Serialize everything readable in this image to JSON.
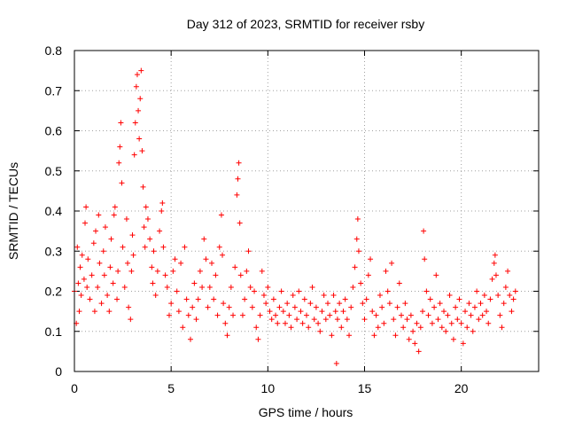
{
  "chart_data": {
    "type": "scatter",
    "title": "Day 312 of 2023, SRMTID for receiver rsby",
    "xlabel": "GPS time / hours",
    "ylabel": "SRMTID / TECUs",
    "xlim": [
      0,
      24
    ],
    "ylim": [
      0,
      0.8
    ],
    "x_ticks": [
      0,
      5,
      10,
      15,
      20
    ],
    "x_tick_labels": [
      "0",
      "5",
      "10",
      "15",
      "20"
    ],
    "y_ticks": [
      0,
      0.1,
      0.2,
      0.3,
      0.4,
      0.5,
      0.6,
      0.7,
      0.8
    ],
    "y_tick_labels": [
      "0",
      "0.1",
      "0.2",
      "0.3",
      "0.4",
      "0.5",
      "0.6",
      "0.7",
      "0.8"
    ],
    "grid": true,
    "marker": "plus",
    "series_color": "#ff0000",
    "series": [
      {
        "name": "SRMTID",
        "points": [
          [
            0.0,
            0.2
          ],
          [
            0.1,
            0.12
          ],
          [
            0.15,
            0.31
          ],
          [
            0.2,
            0.22
          ],
          [
            0.25,
            0.15
          ],
          [
            0.3,
            0.26
          ],
          [
            0.35,
            0.19
          ],
          [
            0.4,
            0.29
          ],
          [
            0.5,
            0.23
          ],
          [
            0.55,
            0.37
          ],
          [
            0.6,
            0.41
          ],
          [
            0.65,
            0.21
          ],
          [
            0.7,
            0.28
          ],
          [
            0.8,
            0.18
          ],
          [
            0.9,
            0.24
          ],
          [
            1.0,
            0.32
          ],
          [
            1.05,
            0.15
          ],
          [
            1.1,
            0.35
          ],
          [
            1.2,
            0.21
          ],
          [
            1.25,
            0.39
          ],
          [
            1.3,
            0.27
          ],
          [
            1.4,
            0.17
          ],
          [
            1.5,
            0.3
          ],
          [
            1.55,
            0.24
          ],
          [
            1.6,
            0.36
          ],
          [
            1.7,
            0.19
          ],
          [
            1.8,
            0.15
          ],
          [
            1.85,
            0.26
          ],
          [
            1.9,
            0.33
          ],
          [
            2.0,
            0.22
          ],
          [
            2.05,
            0.39
          ],
          [
            2.1,
            0.41
          ],
          [
            2.2,
            0.18
          ],
          [
            2.25,
            0.25
          ],
          [
            2.3,
            0.52
          ],
          [
            2.35,
            0.56
          ],
          [
            2.4,
            0.62
          ],
          [
            2.45,
            0.47
          ],
          [
            2.5,
            0.31
          ],
          [
            2.6,
            0.21
          ],
          [
            2.7,
            0.38
          ],
          [
            2.75,
            0.27
          ],
          [
            2.8,
            0.16
          ],
          [
            2.9,
            0.13
          ],
          [
            2.95,
            0.25
          ],
          [
            3.0,
            0.34
          ],
          [
            3.05,
            0.29
          ],
          [
            3.1,
            0.54
          ],
          [
            3.15,
            0.62
          ],
          [
            3.2,
            0.71
          ],
          [
            3.25,
            0.74
          ],
          [
            3.3,
            0.65
          ],
          [
            3.35,
            0.58
          ],
          [
            3.4,
            0.68
          ],
          [
            3.45,
            0.75
          ],
          [
            3.5,
            0.55
          ],
          [
            3.55,
            0.46
          ],
          [
            3.6,
            0.36
          ],
          [
            3.65,
            0.31
          ],
          [
            3.7,
            0.41
          ],
          [
            3.8,
            0.38
          ],
          [
            3.9,
            0.33
          ],
          [
            4.0,
            0.26
          ],
          [
            4.05,
            0.22
          ],
          [
            4.1,
            0.3
          ],
          [
            4.2,
            0.19
          ],
          [
            4.3,
            0.25
          ],
          [
            4.4,
            0.35
          ],
          [
            4.5,
            0.4
          ],
          [
            4.55,
            0.42
          ],
          [
            4.6,
            0.31
          ],
          [
            4.7,
            0.24
          ],
          [
            4.8,
            0.21
          ],
          [
            4.9,
            0.14
          ],
          [
            5.0,
            0.17
          ],
          [
            5.1,
            0.25
          ],
          [
            5.2,
            0.28
          ],
          [
            5.3,
            0.2
          ],
          [
            5.4,
            0.15
          ],
          [
            5.5,
            0.27
          ],
          [
            5.6,
            0.11
          ],
          [
            5.7,
            0.31
          ],
          [
            5.8,
            0.18
          ],
          [
            5.9,
            0.14
          ],
          [
            6.0,
            0.08
          ],
          [
            6.1,
            0.16
          ],
          [
            6.2,
            0.22
          ],
          [
            6.3,
            0.13
          ],
          [
            6.4,
            0.18
          ],
          [
            6.5,
            0.25
          ],
          [
            6.6,
            0.21
          ],
          [
            6.7,
            0.33
          ],
          [
            6.8,
            0.28
          ],
          [
            6.9,
            0.16
          ],
          [
            7.0,
            0.21
          ],
          [
            7.1,
            0.27
          ],
          [
            7.2,
            0.18
          ],
          [
            7.3,
            0.24
          ],
          [
            7.4,
            0.14
          ],
          [
            7.5,
            0.31
          ],
          [
            7.6,
            0.39
          ],
          [
            7.65,
            0.29
          ],
          [
            7.7,
            0.17
          ],
          [
            7.8,
            0.12
          ],
          [
            7.9,
            0.09
          ],
          [
            8.0,
            0.16
          ],
          [
            8.1,
            0.21
          ],
          [
            8.2,
            0.14
          ],
          [
            8.3,
            0.26
          ],
          [
            8.4,
            0.44
          ],
          [
            8.45,
            0.48
          ],
          [
            8.5,
            0.52
          ],
          [
            8.55,
            0.37
          ],
          [
            8.6,
            0.24
          ],
          [
            8.7,
            0.14
          ],
          [
            8.8,
            0.18
          ],
          [
            8.9,
            0.25
          ],
          [
            9.0,
            0.3
          ],
          [
            9.1,
            0.21
          ],
          [
            9.2,
            0.16
          ],
          [
            9.3,
            0.2
          ],
          [
            9.4,
            0.11
          ],
          [
            9.5,
            0.08
          ],
          [
            9.6,
            0.14
          ],
          [
            9.7,
            0.25
          ],
          [
            9.8,
            0.19
          ],
          [
            9.9,
            0.17
          ],
          [
            10.0,
            0.21
          ],
          [
            10.1,
            0.15
          ],
          [
            10.2,
            0.13
          ],
          [
            10.3,
            0.18
          ],
          [
            10.4,
            0.14
          ],
          [
            10.5,
            0.12
          ],
          [
            10.6,
            0.16
          ],
          [
            10.7,
            0.2
          ],
          [
            10.8,
            0.15
          ],
          [
            10.9,
            0.12
          ],
          [
            11.0,
            0.17
          ],
          [
            11.1,
            0.14
          ],
          [
            11.2,
            0.11
          ],
          [
            11.3,
            0.19
          ],
          [
            11.4,
            0.16
          ],
          [
            11.5,
            0.13
          ],
          [
            11.6,
            0.2
          ],
          [
            11.7,
            0.15
          ],
          [
            11.8,
            0.12
          ],
          [
            11.9,
            0.18
          ],
          [
            12.0,
            0.14
          ],
          [
            12.1,
            0.11
          ],
          [
            12.2,
            0.17
          ],
          [
            12.3,
            0.21
          ],
          [
            12.4,
            0.13
          ],
          [
            12.5,
            0.16
          ],
          [
            12.6,
            0.12
          ],
          [
            12.7,
            0.1
          ],
          [
            12.8,
            0.15
          ],
          [
            12.9,
            0.19
          ],
          [
            13.0,
            0.13
          ],
          [
            13.1,
            0.17
          ],
          [
            13.2,
            0.14
          ],
          [
            13.3,
            0.09
          ],
          [
            13.4,
            0.19
          ],
          [
            13.5,
            0.15
          ],
          [
            13.55,
            0.02
          ],
          [
            13.6,
            0.13
          ],
          [
            13.7,
            0.17
          ],
          [
            13.8,
            0.11
          ],
          [
            13.9,
            0.15
          ],
          [
            14.0,
            0.18
          ],
          [
            14.1,
            0.13
          ],
          [
            14.2,
            0.09
          ],
          [
            14.3,
            0.16
          ],
          [
            14.4,
            0.21
          ],
          [
            14.5,
            0.26
          ],
          [
            14.6,
            0.33
          ],
          [
            14.65,
            0.38
          ],
          [
            14.7,
            0.3
          ],
          [
            14.8,
            0.22
          ],
          [
            14.9,
            0.17
          ],
          [
            15.0,
            0.13
          ],
          [
            15.1,
            0.18
          ],
          [
            15.2,
            0.24
          ],
          [
            15.3,
            0.28
          ],
          [
            15.4,
            0.15
          ],
          [
            15.5,
            0.09
          ],
          [
            15.6,
            0.14
          ],
          [
            15.7,
            0.11
          ],
          [
            15.8,
            0.19
          ],
          [
            15.9,
            0.16
          ],
          [
            16.0,
            0.12
          ],
          [
            16.1,
            0.25
          ],
          [
            16.2,
            0.2
          ],
          [
            16.3,
            0.17
          ],
          [
            16.4,
            0.27
          ],
          [
            16.5,
            0.13
          ],
          [
            16.6,
            0.09
          ],
          [
            16.7,
            0.16
          ],
          [
            16.8,
            0.22
          ],
          [
            16.9,
            0.14
          ],
          [
            17.0,
            0.11
          ],
          [
            17.1,
            0.17
          ],
          [
            17.2,
            0.13
          ],
          [
            17.3,
            0.08
          ],
          [
            17.4,
            0.14
          ],
          [
            17.5,
            0.1
          ],
          [
            17.6,
            0.07
          ],
          [
            17.7,
            0.12
          ],
          [
            17.8,
            0.05
          ],
          [
            17.9,
            0.11
          ],
          [
            18.0,
            0.15
          ],
          [
            18.05,
            0.35
          ],
          [
            18.1,
            0.28
          ],
          [
            18.2,
            0.2
          ],
          [
            18.3,
            0.14
          ],
          [
            18.4,
            0.18
          ],
          [
            18.5,
            0.12
          ],
          [
            18.6,
            0.16
          ],
          [
            18.7,
            0.24
          ],
          [
            18.8,
            0.13
          ],
          [
            18.9,
            0.17
          ],
          [
            19.0,
            0.11
          ],
          [
            19.1,
            0.15
          ],
          [
            19.2,
            0.1
          ],
          [
            19.3,
            0.14
          ],
          [
            19.4,
            0.19
          ],
          [
            19.5,
            0.12
          ],
          [
            19.6,
            0.08
          ],
          [
            19.7,
            0.16
          ],
          [
            19.8,
            0.13
          ],
          [
            19.9,
            0.18
          ],
          [
            20.0,
            0.12
          ],
          [
            20.1,
            0.07
          ],
          [
            20.2,
            0.15
          ],
          [
            20.3,
            0.11
          ],
          [
            20.4,
            0.17
          ],
          [
            20.5,
            0.14
          ],
          [
            20.6,
            0.1
          ],
          [
            20.7,
            0.16
          ],
          [
            20.8,
            0.2
          ],
          [
            20.9,
            0.13
          ],
          [
            21.0,
            0.17
          ],
          [
            21.1,
            0.14
          ],
          [
            21.2,
            0.19
          ],
          [
            21.3,
            0.15
          ],
          [
            21.4,
            0.12
          ],
          [
            21.5,
            0.18
          ],
          [
            21.6,
            0.23
          ],
          [
            21.7,
            0.27
          ],
          [
            21.75,
            0.29
          ],
          [
            21.8,
            0.24
          ],
          [
            21.9,
            0.19
          ],
          [
            22.0,
            0.14
          ],
          [
            22.1,
            0.11
          ],
          [
            22.2,
            0.17
          ],
          [
            22.3,
            0.21
          ],
          [
            22.4,
            0.25
          ],
          [
            22.5,
            0.19
          ],
          [
            22.6,
            0.15
          ],
          [
            22.7,
            0.18
          ],
          [
            22.8,
            0.2
          ]
        ]
      }
    ]
  }
}
